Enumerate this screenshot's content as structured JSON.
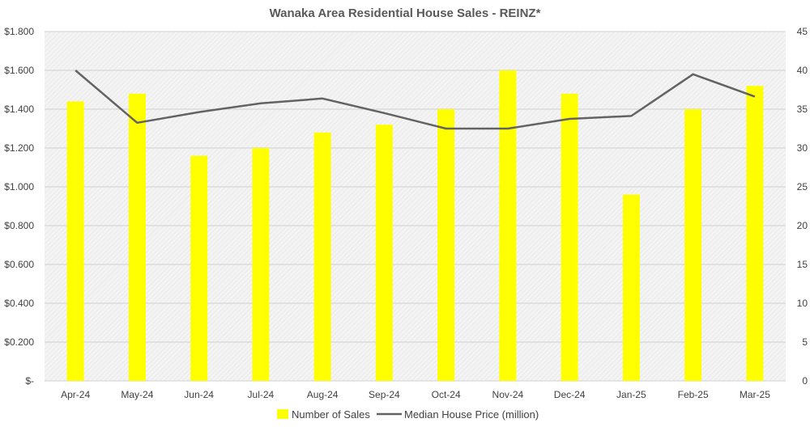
{
  "chart_data": {
    "type": "bar",
    "title": "Wanaka Area Residential House Sales - REINZ*",
    "categories": [
      "Apr-24",
      "May-24",
      "Jun-24",
      "Jul-24",
      "Aug-24",
      "Sep-24",
      "Oct-24",
      "Nov-24",
      "Dec-24",
      "Jan-25",
      "Feb-25",
      "Mar-25"
    ],
    "series": [
      {
        "name": "Number of Sales",
        "type": "bar",
        "axis": "right",
        "color": "#ffff00",
        "values": [
          36,
          37,
          29,
          30,
          32,
          33,
          35,
          40,
          37,
          24,
          35,
          38
        ]
      },
      {
        "name": "Median House Price (million)",
        "type": "line",
        "axis": "left",
        "color": "#636363",
        "values": [
          1.6,
          1.33,
          1.385,
          1.43,
          1.455,
          1.38,
          1.3,
          1.3,
          1.35,
          1.365,
          1.58,
          1.465
        ]
      }
    ],
    "y_left": {
      "ylim": [
        0,
        1.8
      ],
      "ticks": [
        0,
        0.2,
        0.4,
        0.6,
        0.8,
        1.0,
        1.2,
        1.4,
        1.6,
        1.8
      ],
      "tick_labels": [
        "$-",
        "$0.200",
        "$0.400",
        "$0.600",
        "$0.800",
        "$1.000",
        "$1.200",
        "$1.400",
        "$1.600",
        "$1.800"
      ]
    },
    "y_right": {
      "ylim": [
        0,
        45
      ],
      "ticks": [
        0,
        5,
        10,
        15,
        20,
        25,
        30,
        35,
        40,
        45
      ],
      "tick_labels": [
        "0",
        "5",
        "10",
        "15",
        "20",
        "25",
        "30",
        "35",
        "40",
        "45"
      ]
    },
    "grid": true,
    "legend_position": "bottom"
  }
}
